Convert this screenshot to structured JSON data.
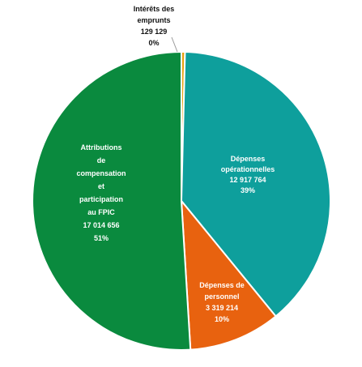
{
  "chart_data": {
    "type": "pie",
    "title": "",
    "slices": [
      {
        "label_lines": [
          "Intérêts des",
          "emprunts"
        ],
        "value": 129129,
        "value_text": "129 129",
        "percent_text": "0%",
        "color": "#e8a010"
      },
      {
        "label_lines": [
          "Dépenses",
          "opérationnelles"
        ],
        "value": 12917764,
        "value_text": "12 917 764",
        "percent_text": "39%",
        "color": "#0e9f9c"
      },
      {
        "label_lines": [
          "Dépenses de",
          "personnel"
        ],
        "value": 3319214,
        "value_text": "3 319 214",
        "percent_text": "10%",
        "color": "#e8620f"
      },
      {
        "label_lines": [
          "Attributions",
          "de",
          "compensation",
          "et",
          "participation",
          "au FPIC"
        ],
        "value": 17014656,
        "value_text": "17 014 656",
        "percent_text": "51%",
        "color": "#0a8a3e"
      }
    ],
    "legend": "none",
    "label_style": "data labels with category name, value and percentage",
    "label_text_color_outside": "#111111",
    "label_text_color_inside": "#ffffff",
    "slice_border_color": "#ffffff"
  }
}
